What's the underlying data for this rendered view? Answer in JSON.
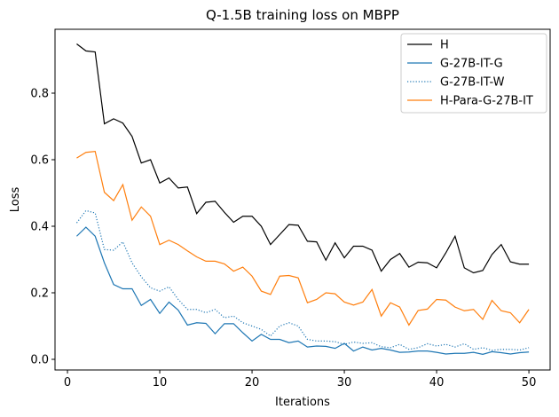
{
  "chart_data": {
    "type": "line",
    "title": "Q-1.5B training loss on MBPP",
    "xlabel": "Iterations",
    "ylabel": "Loss",
    "xlim": [
      -1.35,
      52.3
    ],
    "ylim": [
      -0.032,
      0.992
    ],
    "xticks": [
      0,
      10,
      20,
      30,
      40,
      50
    ],
    "yticks": [
      0.0,
      0.2,
      0.4,
      0.6,
      0.8
    ],
    "xtick_labels": [
      "0",
      "10",
      "20",
      "30",
      "40",
      "50"
    ],
    "ytick_labels": [
      "0.0",
      "0.2",
      "0.4",
      "0.6",
      "0.8"
    ],
    "grid": false,
    "legend_position": "top-right",
    "x": [
      1,
      2,
      3,
      4,
      5,
      6,
      7,
      8,
      9,
      10,
      11,
      12,
      13,
      14,
      15,
      16,
      17,
      18,
      19,
      20,
      21,
      22,
      23,
      24,
      25,
      26,
      27,
      28,
      29,
      30,
      31,
      32,
      33,
      34,
      35,
      36,
      37,
      38,
      39,
      40,
      41,
      42,
      43,
      44,
      45,
      46,
      47,
      48,
      49,
      50
    ],
    "series": [
      {
        "name": "H",
        "color": "#000000",
        "style": "solid",
        "values": [
          0.948,
          0.927,
          0.924,
          0.708,
          0.723,
          0.71,
          0.67,
          0.59,
          0.6,
          0.53,
          0.545,
          0.515,
          0.518,
          0.438,
          0.472,
          0.475,
          0.442,
          0.412,
          0.43,
          0.43,
          0.4,
          0.345,
          0.375,
          0.405,
          0.403,
          0.355,
          0.353,
          0.298,
          0.35,
          0.305,
          0.34,
          0.34,
          0.328,
          0.265,
          0.3,
          0.318,
          0.277,
          0.292,
          0.29,
          0.275,
          0.32,
          0.37,
          0.275,
          0.26,
          0.267,
          0.315,
          0.345,
          0.293,
          0.286,
          0.286
        ]
      },
      {
        "name": "G-27B-IT-G",
        "color": "#1f77b4",
        "style": "solid",
        "values": [
          0.37,
          0.397,
          0.37,
          0.29,
          0.225,
          0.212,
          0.212,
          0.162,
          0.18,
          0.138,
          0.172,
          0.148,
          0.103,
          0.11,
          0.108,
          0.077,
          0.107,
          0.107,
          0.08,
          0.055,
          0.075,
          0.06,
          0.06,
          0.05,
          0.055,
          0.037,
          0.04,
          0.039,
          0.033,
          0.048,
          0.025,
          0.037,
          0.028,
          0.033,
          0.028,
          0.021,
          0.022,
          0.025,
          0.025,
          0.021,
          0.016,
          0.018,
          0.018,
          0.021,
          0.015,
          0.023,
          0.02,
          0.016,
          0.02,
          0.022
        ]
      },
      {
        "name": "G-27B-IT-W",
        "color": "#1f77b4",
        "style": "dotted",
        "values": [
          0.41,
          0.447,
          0.44,
          0.33,
          0.328,
          0.353,
          0.29,
          0.248,
          0.215,
          0.205,
          0.218,
          0.18,
          0.15,
          0.15,
          0.14,
          0.15,
          0.125,
          0.13,
          0.11,
          0.1,
          0.09,
          0.07,
          0.1,
          0.11,
          0.1,
          0.06,
          0.055,
          0.055,
          0.053,
          0.045,
          0.052,
          0.048,
          0.05,
          0.038,
          0.035,
          0.045,
          0.03,
          0.035,
          0.047,
          0.04,
          0.045,
          0.037,
          0.047,
          0.03,
          0.035,
          0.027,
          0.03,
          0.03,
          0.028,
          0.035
        ]
      },
      {
        "name": "H-Para-G-27B-IT",
        "color": "#ff7f0e",
        "style": "solid",
        "values": [
          0.605,
          0.622,
          0.625,
          0.502,
          0.477,
          0.525,
          0.418,
          0.458,
          0.43,
          0.345,
          0.358,
          0.345,
          0.326,
          0.308,
          0.295,
          0.295,
          0.287,
          0.265,
          0.277,
          0.25,
          0.205,
          0.195,
          0.25,
          0.252,
          0.245,
          0.17,
          0.18,
          0.2,
          0.197,
          0.172,
          0.163,
          0.172,
          0.21,
          0.13,
          0.17,
          0.157,
          0.103,
          0.147,
          0.151,
          0.18,
          0.178,
          0.157,
          0.146,
          0.15,
          0.12,
          0.177,
          0.146,
          0.14,
          0.11,
          0.15
        ]
      }
    ]
  }
}
